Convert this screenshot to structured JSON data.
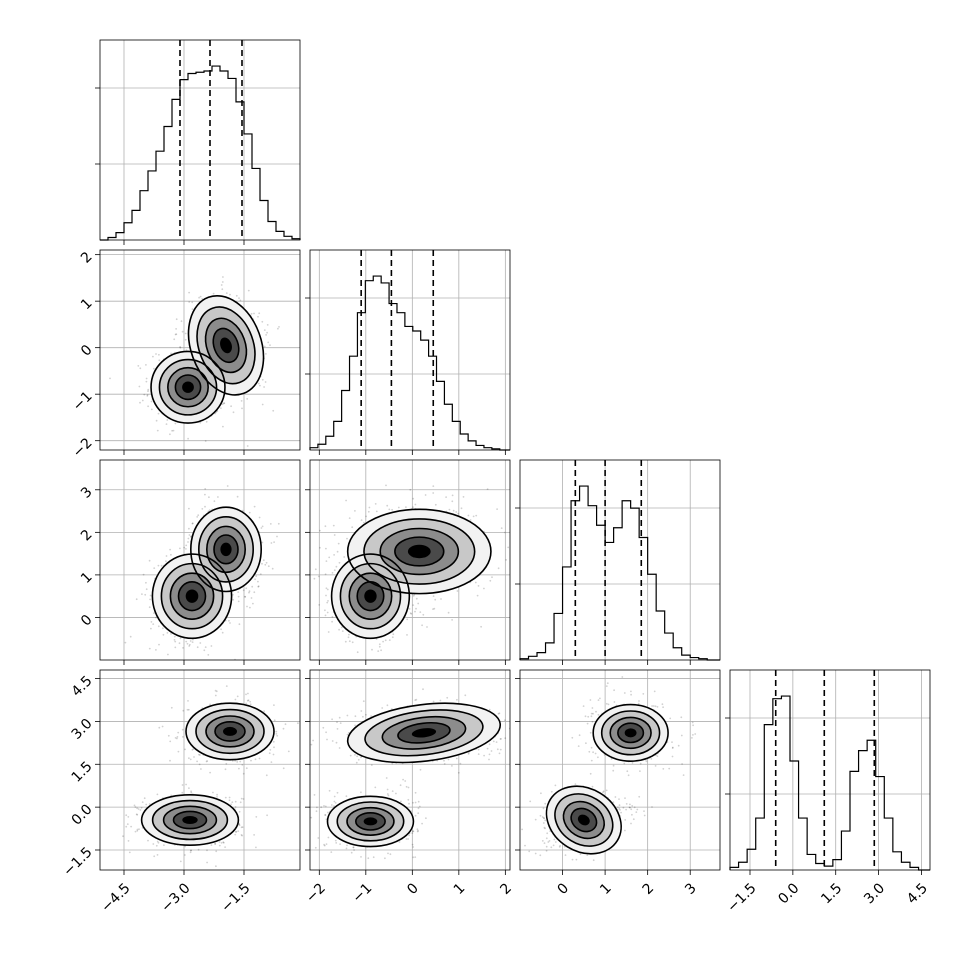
{
  "chart_data": {
    "type": "corner",
    "grid": true,
    "legend": "none",
    "colors": {
      "line": "#000000",
      "grid": "#b0b0b0",
      "levels": [
        "#f2f2f2",
        "#c8c8c8",
        "#8c8c8c",
        "#4a4a4a",
        "#000000"
      ]
    },
    "parameters": [
      {
        "index": 0,
        "range": [
          -5.1,
          -0.1
        ],
        "ticks": [
          -4.5,
          -3.0,
          -1.5
        ],
        "tick_labels": [
          "−4.5",
          "−3.0",
          "−1.5"
        ],
        "quantiles": [
          -3.1,
          -2.35,
          -1.55
        ]
      },
      {
        "index": 1,
        "range": [
          -2.2,
          2.1
        ],
        "ticks": [
          -2,
          -1,
          0,
          1,
          2
        ],
        "tick_labels": [
          "−2",
          "−1",
          "0",
          "1",
          "2"
        ],
        "quantiles": [
          -1.1,
          -0.45,
          0.45
        ]
      },
      {
        "index": 2,
        "range": [
          -1.0,
          3.7
        ],
        "ticks": [
          0,
          1,
          2,
          3
        ],
        "tick_labels": [
          "0",
          "1",
          "2",
          "3"
        ],
        "quantiles": [
          0.3,
          1.0,
          1.85
        ]
      },
      {
        "index": 3,
        "range": [
          -2.2,
          4.8
        ],
        "ticks": [
          -1.5,
          0.0,
          1.5,
          3.0,
          4.5
        ],
        "tick_labels": [
          "−1.5",
          "0.0",
          "1.5",
          "3.0",
          "4.5"
        ],
        "quantiles": [
          -0.6,
          1.1,
          2.85
        ]
      }
    ],
    "histograms": [
      {
        "param": 0,
        "bin_edges": [
          -5.1,
          -4.9,
          -4.7,
          -4.5,
          -4.3,
          -4.1,
          -3.9,
          -3.7,
          -3.5,
          -3.3,
          -3.1,
          -2.9,
          -2.7,
          -2.5,
          -2.3,
          -2.1,
          -1.9,
          -1.7,
          -1.5,
          -1.3,
          -1.1,
          -0.9,
          -0.7,
          -0.5,
          -0.3,
          -0.1
        ],
        "counts": [
          0,
          2,
          6,
          14,
          24,
          40,
          56,
          72,
          92,
          114,
          130,
          135,
          136,
          137,
          141,
          137,
          131,
          112,
          86,
          58,
          32,
          15,
          7,
          3,
          1
        ]
      },
      {
        "param": 1,
        "bin_edges": [
          -2.2,
          -2.03,
          -1.86,
          -1.69,
          -1.52,
          -1.35,
          -1.18,
          -1.01,
          -0.84,
          -0.67,
          -0.5,
          -0.33,
          -0.16,
          0.01,
          0.18,
          0.35,
          0.52,
          0.69,
          0.86,
          1.03,
          1.2,
          1.37,
          1.54,
          1.71,
          1.88,
          2.1
        ],
        "counts": [
          2,
          5,
          12,
          25,
          52,
          82,
          120,
          148,
          152,
          146,
          128,
          120,
          108,
          104,
          96,
          82,
          60,
          40,
          25,
          14,
          8,
          4,
          2,
          1,
          0
        ]
      },
      {
        "param": 2,
        "bin_edges": [
          -1.0,
          -0.8,
          -0.6,
          -0.4,
          -0.2,
          0.0,
          0.2,
          0.4,
          0.6,
          0.8,
          1.0,
          1.2,
          1.4,
          1.6,
          1.8,
          2.0,
          2.2,
          2.4,
          2.6,
          2.8,
          3.0,
          3.2,
          3.4,
          3.7
        ],
        "counts": [
          1,
          3,
          6,
          14,
          38,
          76,
          130,
          142,
          126,
          110,
          96,
          108,
          130,
          124,
          100,
          70,
          40,
          22,
          10,
          4,
          2,
          1,
          0
        ]
      },
      {
        "param": 3,
        "bin_edges": [
          -2.2,
          -1.9,
          -1.6,
          -1.3,
          -1.0,
          -0.7,
          -0.4,
          -0.1,
          0.2,
          0.5,
          0.8,
          1.1,
          1.4,
          1.7,
          2.0,
          2.3,
          2.6,
          2.9,
          3.2,
          3.5,
          3.8,
          4.1,
          4.4,
          4.8
        ],
        "counts": [
          2,
          6,
          16,
          40,
          112,
          132,
          134,
          84,
          40,
          12,
          5,
          3,
          8,
          30,
          76,
          92,
          100,
          72,
          40,
          14,
          6,
          2,
          0
        ]
      }
    ],
    "joint_panels": [
      {
        "x_param": 0,
        "y_param": 1,
        "modes": [
          {
            "cx": -2.9,
            "cy": -0.85,
            "sx": 0.42,
            "sy": 0.35,
            "rot": 0
          },
          {
            "cx": -1.95,
            "cy": 0.05,
            "sx": 0.4,
            "sy": 0.5,
            "rot": 0.35
          }
        ]
      },
      {
        "x_param": 0,
        "y_param": 2,
        "modes": [
          {
            "cx": -2.8,
            "cy": 0.5,
            "sx": 0.45,
            "sy": 0.45,
            "rot": 0
          },
          {
            "cx": -1.95,
            "cy": 1.6,
            "sx": 0.4,
            "sy": 0.45,
            "rot": 0
          }
        ]
      },
      {
        "x_param": 1,
        "y_param": 2,
        "modes": [
          {
            "cx": -0.9,
            "cy": 0.5,
            "sx": 0.38,
            "sy": 0.45,
            "rot": 0
          },
          {
            "cx": 0.15,
            "cy": 1.55,
            "sx": 0.7,
            "sy": 0.45,
            "rot": 0
          }
        ]
      },
      {
        "x_param": 0,
        "y_param": 3,
        "modes": [
          {
            "cx": -2.85,
            "cy": -0.45,
            "sx": 0.55,
            "sy": 0.4,
            "rot": 0
          },
          {
            "cx": -1.85,
            "cy": 2.65,
            "sx": 0.5,
            "sy": 0.45,
            "rot": 0
          }
        ]
      },
      {
        "x_param": 1,
        "y_param": 3,
        "modes": [
          {
            "cx": -0.9,
            "cy": -0.5,
            "sx": 0.42,
            "sy": 0.4,
            "rot": 0
          },
          {
            "cx": 0.25,
            "cy": 2.6,
            "sx": 0.75,
            "sy": 0.45,
            "rot": 0.12
          }
        ]
      },
      {
        "x_param": 2,
        "y_param": 3,
        "modes": [
          {
            "cx": 0.5,
            "cy": -0.45,
            "sx": 0.42,
            "sy": 0.5,
            "rot": -0.55
          },
          {
            "cx": 1.6,
            "cy": 2.6,
            "sx": 0.4,
            "sy": 0.45,
            "rot": 0
          }
        ]
      }
    ]
  }
}
